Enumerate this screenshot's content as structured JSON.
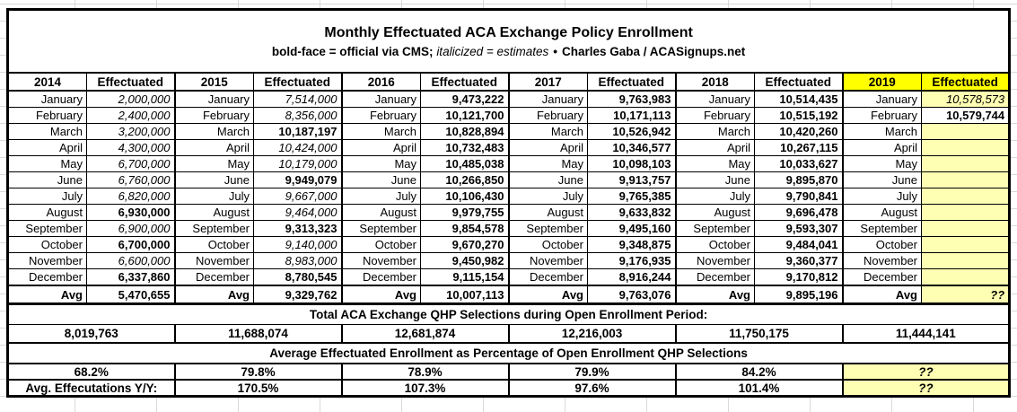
{
  "header": {
    "title": "Monthly Effectuated ACA Exchange Policy Enrollment",
    "legend_bold": "bold-face = official via CMS;",
    "legend_italic": "italicized = estimates",
    "separator": "•",
    "credit": "Charles Gaba / ACASignups.net"
  },
  "colors": {
    "highlight_bright_yellow": "#ffff00",
    "highlight_light_yellow": "#ffffb3",
    "border_black": "#000000",
    "grid_line_gray": "#d9d9d9"
  },
  "chart_data": {
    "type": "table",
    "title": "Monthly Effectuated ACA Exchange Policy Enrollment",
    "effectuated_label": "Effectuated",
    "avg_label": "Avg",
    "style_legend": {
      "official": "bold",
      "estimate": "italic"
    },
    "months": [
      "January",
      "February",
      "March",
      "April",
      "May",
      "June",
      "July",
      "August",
      "September",
      "October",
      "November",
      "December"
    ],
    "years": [
      {
        "year": "2014",
        "values": [
          {
            "text": "2,000,000",
            "style": "estimate"
          },
          {
            "text": "2,400,000",
            "style": "estimate"
          },
          {
            "text": "3,200,000",
            "style": "estimate"
          },
          {
            "text": "4,300,000",
            "style": "estimate"
          },
          {
            "text": "6,700,000",
            "style": "estimate"
          },
          {
            "text": "6,760,000",
            "style": "estimate"
          },
          {
            "text": "6,820,000",
            "style": "estimate"
          },
          {
            "text": "6,930,000",
            "style": "official"
          },
          {
            "text": "6,900,000",
            "style": "estimate"
          },
          {
            "text": "6,700,000",
            "style": "official"
          },
          {
            "text": "6,600,000",
            "style": "estimate"
          },
          {
            "text": "6,337,860",
            "style": "official"
          }
        ],
        "avg": {
          "text": "5,470,655",
          "style": "official"
        }
      },
      {
        "year": "2015",
        "values": [
          {
            "text": "7,514,000",
            "style": "estimate"
          },
          {
            "text": "8,356,000",
            "style": "estimate"
          },
          {
            "text": "10,187,197",
            "style": "official"
          },
          {
            "text": "10,424,000",
            "style": "estimate"
          },
          {
            "text": "10,179,000",
            "style": "estimate"
          },
          {
            "text": "9,949,079",
            "style": "official"
          },
          {
            "text": "9,667,000",
            "style": "estimate"
          },
          {
            "text": "9,464,000",
            "style": "estimate"
          },
          {
            "text": "9,313,323",
            "style": "official"
          },
          {
            "text": "9,140,000",
            "style": "estimate"
          },
          {
            "text": "8,983,000",
            "style": "estimate"
          },
          {
            "text": "8,780,545",
            "style": "official"
          }
        ],
        "avg": {
          "text": "9,329,762",
          "style": "official"
        }
      },
      {
        "year": "2016",
        "values": [
          {
            "text": "9,473,222",
            "style": "official"
          },
          {
            "text": "10,121,700",
            "style": "official"
          },
          {
            "text": "10,828,894",
            "style": "official"
          },
          {
            "text": "10,732,483",
            "style": "official"
          },
          {
            "text": "10,485,038",
            "style": "official"
          },
          {
            "text": "10,266,850",
            "style": "official"
          },
          {
            "text": "10,106,430",
            "style": "official"
          },
          {
            "text": "9,979,755",
            "style": "official"
          },
          {
            "text": "9,854,578",
            "style": "official"
          },
          {
            "text": "9,670,270",
            "style": "official"
          },
          {
            "text": "9,450,982",
            "style": "official"
          },
          {
            "text": "9,115,154",
            "style": "official"
          }
        ],
        "avg": {
          "text": "10,007,113",
          "style": "official"
        }
      },
      {
        "year": "2017",
        "values": [
          {
            "text": "9,763,983",
            "style": "official"
          },
          {
            "text": "10,171,113",
            "style": "official"
          },
          {
            "text": "10,526,942",
            "style": "official"
          },
          {
            "text": "10,346,577",
            "style": "official"
          },
          {
            "text": "10,098,103",
            "style": "official"
          },
          {
            "text": "9,913,757",
            "style": "official"
          },
          {
            "text": "9,765,385",
            "style": "official"
          },
          {
            "text": "9,633,832",
            "style": "official"
          },
          {
            "text": "9,495,160",
            "style": "official"
          },
          {
            "text": "9,348,875",
            "style": "official"
          },
          {
            "text": "9,176,935",
            "style": "official"
          },
          {
            "text": "8,916,244",
            "style": "official"
          }
        ],
        "avg": {
          "text": "9,763,076",
          "style": "official"
        }
      },
      {
        "year": "2018",
        "values": [
          {
            "text": "10,514,435",
            "style": "official"
          },
          {
            "text": "10,515,192",
            "style": "official"
          },
          {
            "text": "10,420,260",
            "style": "official"
          },
          {
            "text": "10,267,115",
            "style": "official"
          },
          {
            "text": "10,033,627",
            "style": "official"
          },
          {
            "text": "9,895,870",
            "style": "official"
          },
          {
            "text": "9,790,841",
            "style": "official"
          },
          {
            "text": "9,696,478",
            "style": "official"
          },
          {
            "text": "9,593,307",
            "style": "official"
          },
          {
            "text": "9,484,041",
            "style": "official"
          },
          {
            "text": "9,360,377",
            "style": "official"
          },
          {
            "text": "9,170,812",
            "style": "official"
          }
        ],
        "avg": {
          "text": "9,895,196",
          "style": "official"
        }
      },
      {
        "year": "2019",
        "hl": "bright",
        "values": [
          {
            "text": "10,578,573",
            "style": "estimate",
            "hl": "light"
          },
          {
            "text": "10,579,744",
            "style": "official"
          },
          {
            "text": "",
            "style": "",
            "hl": "light"
          },
          {
            "text": "",
            "style": "",
            "hl": "light"
          },
          {
            "text": "",
            "style": "",
            "hl": "light"
          },
          {
            "text": "",
            "style": "",
            "hl": "light"
          },
          {
            "text": "",
            "style": "",
            "hl": "light"
          },
          {
            "text": "",
            "style": "",
            "hl": "light"
          },
          {
            "text": "",
            "style": "",
            "hl": "light"
          },
          {
            "text": "",
            "style": "",
            "hl": "light"
          },
          {
            "text": "",
            "style": "",
            "hl": "light"
          },
          {
            "text": "",
            "style": "",
            "hl": "light"
          }
        ],
        "avg": {
          "text": "??",
          "style": "estimate",
          "hl": "light"
        }
      }
    ],
    "qhp": {
      "title": "Total ACA Exchange QHP Selections during Open Enrollment Period:",
      "values": [
        "8,019,763",
        "11,688,074",
        "12,681,874",
        "12,216,003",
        "11,750,175",
        "11,444,141"
      ]
    },
    "pct": {
      "title": "Average Effectuated Enrollment as Percentage of Open Enrollment QHP Selections",
      "values": [
        {
          "text": "68.2%",
          "style": "official"
        },
        {
          "text": "79.8%",
          "style": "official"
        },
        {
          "text": "78.9%",
          "style": "official"
        },
        {
          "text": "79.9%",
          "style": "official"
        },
        {
          "text": "84.2%",
          "style": "official"
        },
        {
          "text": "??",
          "style": "estimate",
          "hl": "light"
        }
      ]
    },
    "yy": {
      "label": "Avg. Effecutations Y/Y:",
      "values": [
        {
          "text": "170.5%",
          "style": "official"
        },
        {
          "text": "107.3%",
          "style": "official"
        },
        {
          "text": "97.6%",
          "style": "official"
        },
        {
          "text": "101.4%",
          "style": "official"
        },
        {
          "text": "??",
          "style": "estimate",
          "hl": "light"
        }
      ]
    }
  }
}
